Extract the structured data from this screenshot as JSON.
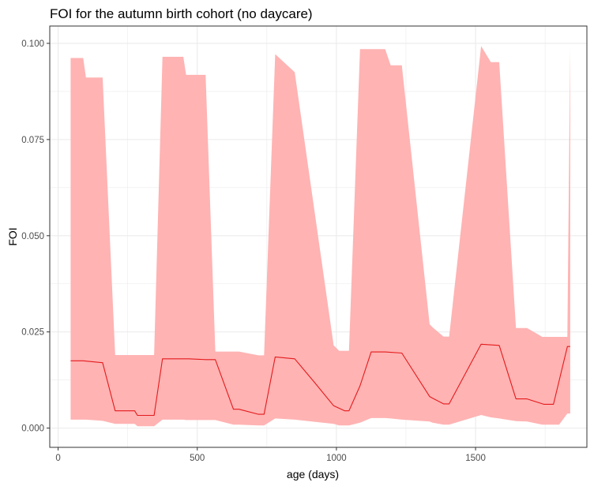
{
  "chart_data": {
    "type": "area",
    "title": "FOI for the autumn birth cohort (no daycare)",
    "xlabel": "age (days)",
    "ylabel": "FOI",
    "xlim": [
      -30,
      1900
    ],
    "ylim": [
      -0.005,
      0.1045
    ],
    "x_ticks": [
      0,
      500,
      1000,
      1500
    ],
    "y_ticks": [
      0.0,
      0.025,
      0.05,
      0.075,
      0.1
    ],
    "x_tick_labels": [
      "0",
      "500",
      "1000",
      "1500"
    ],
    "y_tick_labels": [
      "0.000",
      "0.025",
      "0.050",
      "0.075",
      "0.100"
    ],
    "grid": true,
    "colors": {
      "line": "#e41a1c",
      "ribbon": "#ffb3b3",
      "grid": "#ebebeb",
      "border": "#333333"
    },
    "series": [
      {
        "type": "line",
        "x": [
          45,
          90,
          160,
          205,
          275,
          285,
          345,
          375,
          470,
          530,
          565,
          630,
          650,
          720,
          740,
          780,
          850,
          920,
          990,
          1030,
          1045,
          1085,
          1125,
          1175,
          1235,
          1335,
          1345,
          1385,
          1405,
          1520,
          1585,
          1645,
          1685,
          1745,
          1780,
          1830,
          1840
        ],
        "y": [
          0.0175,
          0.0175,
          0.017,
          0.0045,
          0.0045,
          0.0033,
          0.0033,
          0.018,
          0.018,
          0.0178,
          0.0178,
          0.0049,
          0.0049,
          0.0036,
          0.0036,
          0.0185,
          0.018,
          0.012,
          0.0058,
          0.0045,
          0.0045,
          0.011,
          0.0198,
          0.0198,
          0.0195,
          0.0082,
          0.0078,
          0.0063,
          0.0063,
          0.0218,
          0.0215,
          0.0076,
          0.0076,
          0.0062,
          0.0062,
          0.0212,
          0.0212
        ]
      },
      {
        "type": "ribbon",
        "x": [
          45,
          90,
          100,
          160,
          205,
          275,
          285,
          345,
          375,
          450,
          460,
          530,
          565,
          630,
          650,
          720,
          740,
          780,
          850,
          990,
          1010,
          1045,
          1085,
          1125,
          1175,
          1195,
          1235,
          1335,
          1345,
          1385,
          1405,
          1520,
          1555,
          1585,
          1645,
          1685,
          1740,
          1760,
          1800,
          1830,
          1840
        ],
        "lower": [
          0.0022,
          0.0022,
          0.0022,
          0.0019,
          0.0011,
          0.0011,
          0.0005,
          0.0005,
          0.0022,
          0.0022,
          0.0021,
          0.0021,
          0.0021,
          0.0009,
          0.0009,
          0.0007,
          0.0007,
          0.0025,
          0.0022,
          0.0011,
          0.0007,
          0.0007,
          0.0014,
          0.0026,
          0.0026,
          0.0025,
          0.0022,
          0.0017,
          0.0014,
          0.0009,
          0.0009,
          0.0034,
          0.0028,
          0.0025,
          0.0018,
          0.0017,
          0.0009,
          0.0009,
          0.0009,
          0.0038,
          0.0038
        ],
        "upper": [
          0.0962,
          0.0962,
          0.0911,
          0.0911,
          0.019,
          0.019,
          0.019,
          0.019,
          0.0965,
          0.0965,
          0.0918,
          0.0918,
          0.0199,
          0.0199,
          0.0199,
          0.0189,
          0.0189,
          0.0972,
          0.0925,
          0.0215,
          0.0201,
          0.0201,
          0.0985,
          0.0985,
          0.0985,
          0.0943,
          0.0943,
          0.027,
          0.0262,
          0.0238,
          0.0238,
          0.0993,
          0.0951,
          0.0951,
          0.026,
          0.026,
          0.0237,
          0.0237,
          0.0237,
          0.0237,
          0.0992
        ]
      }
    ]
  }
}
